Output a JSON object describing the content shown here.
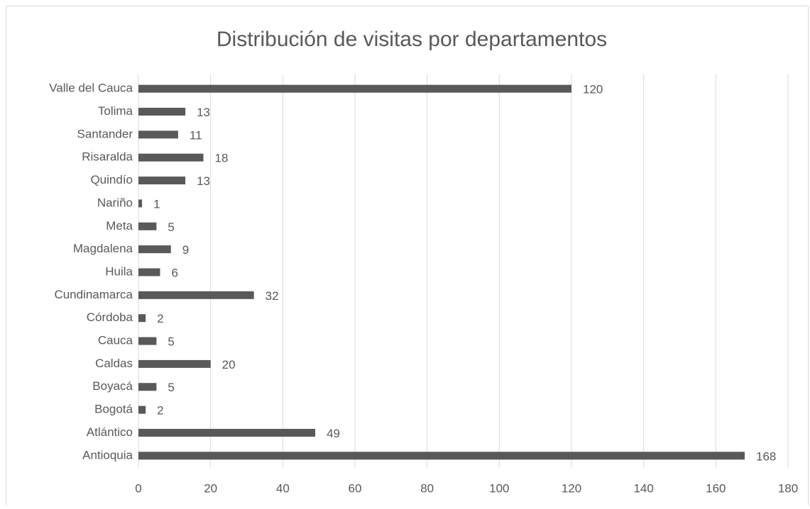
{
  "chart_data": {
    "type": "bar",
    "orientation": "horizontal",
    "title": "Distribución de visitas por departamentos",
    "categories": [
      "Antioquia",
      "Atlántico",
      "Bogotá",
      "Boyacá",
      "Caldas",
      "Cauca",
      "Córdoba",
      "Cundinamarca",
      "Huila",
      "Magdalena",
      "Meta",
      "Nariño",
      "Quindío",
      "Risaralda",
      "Santander",
      "Tolima",
      "Valle del Cauca"
    ],
    "values": [
      168,
      49,
      2,
      5,
      20,
      5,
      2,
      32,
      6,
      9,
      5,
      1,
      13,
      18,
      11,
      13,
      120
    ],
    "color": "#595959",
    "xlim": [
      0,
      180
    ],
    "xticks": [
      0,
      20,
      40,
      60,
      80,
      100,
      120,
      140,
      160,
      180
    ],
    "grid": true,
    "data_labels": true
  }
}
